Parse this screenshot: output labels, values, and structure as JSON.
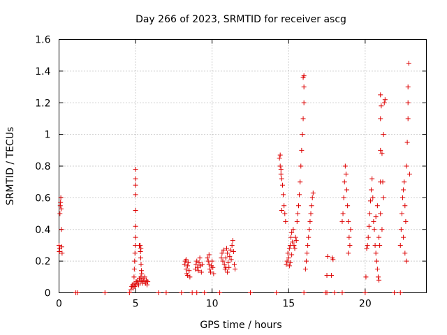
{
  "chart_data": {
    "type": "scatter",
    "title": "Day 266 of 2023, SRMTID for receiver ascg",
    "xlabel": "GPS time / hours",
    "ylabel": "SRMTID / TECUs",
    "xlim": [
      0,
      24
    ],
    "ylim": [
      0,
      1.6
    ],
    "xticks": [
      {
        "value": 0,
        "label": "0"
      },
      {
        "value": 5,
        "label": "5"
      },
      {
        "value": 10,
        "label": "10"
      },
      {
        "value": 15,
        "label": "15"
      },
      {
        "value": 20,
        "label": "20"
      }
    ],
    "yticks": [
      {
        "value": 0,
        "label": "0"
      },
      {
        "value": 0.2,
        "label": "0.2"
      },
      {
        "value": 0.4,
        "label": "0.4"
      },
      {
        "value": 0.6,
        "label": "0.6"
      },
      {
        "value": 0.8,
        "label": "0.8"
      },
      {
        "value": 1.0,
        "label": "1"
      },
      {
        "value": 1.2,
        "label": "1.2"
      },
      {
        "value": 1.4,
        "label": "1.4"
      },
      {
        "value": 1.6,
        "label": "1.6"
      }
    ],
    "grid": true,
    "marker": "+",
    "color": "#dd0000",
    "series": [
      {
        "name": "SRMTID",
        "points": [
          [
            0.0,
            0.3
          ],
          [
            0.02,
            0.26
          ],
          [
            0.04,
            0.28
          ],
          [
            0.06,
            0.5
          ],
          [
            0.08,
            0.55
          ],
          [
            0.1,
            0.57
          ],
          [
            0.12,
            0.6
          ],
          [
            0.14,
            0.53
          ],
          [
            0.16,
            0.4
          ],
          [
            0.18,
            0.29
          ],
          [
            0.2,
            0.25
          ],
          [
            1.1,
            0.0
          ],
          [
            1.2,
            0.0
          ],
          [
            3.0,
            0.0
          ],
          [
            4.6,
            0.0
          ],
          [
            4.7,
            0.02
          ],
          [
            4.75,
            0.04
          ],
          [
            4.8,
            0.05
          ],
          [
            4.85,
            0.03
          ],
          [
            4.9,
            0.06
          ],
          [
            4.95,
            0.04
          ],
          [
            5.0,
            0.05
          ],
          [
            5.05,
            0.07
          ],
          [
            5.1,
            0.06
          ],
          [
            5.15,
            0.08
          ],
          [
            5.2,
            0.05
          ],
          [
            5.25,
            0.09
          ],
          [
            5.3,
            0.07
          ],
          [
            5.35,
            0.1
          ],
          [
            5.4,
            0.08
          ],
          [
            5.45,
            0.06
          ],
          [
            5.5,
            0.09
          ],
          [
            5.55,
            0.07
          ],
          [
            5.6,
            0.1
          ],
          [
            5.65,
            0.06
          ],
          [
            5.7,
            0.08
          ],
          [
            5.75,
            0.05
          ],
          [
            5.8,
            0.07
          ],
          [
            4.9,
            0.1
          ],
          [
            4.92,
            0.15
          ],
          [
            4.94,
            0.2
          ],
          [
            4.96,
            0.25
          ],
          [
            4.98,
            0.3
          ],
          [
            5.0,
            0.35
          ],
          [
            5.0,
            0.42
          ],
          [
            5.0,
            0.52
          ],
          [
            5.0,
            0.62
          ],
          [
            5.0,
            0.68
          ],
          [
            5.0,
            0.72
          ],
          [
            5.0,
            0.78
          ],
          [
            5.3,
            0.3
          ],
          [
            5.32,
            0.26
          ],
          [
            5.34,
            0.22
          ],
          [
            5.36,
            0.18
          ],
          [
            5.38,
            0.14
          ],
          [
            5.4,
            0.12
          ],
          [
            5.35,
            0.28
          ],
          [
            5.25,
            0.3
          ],
          [
            6.5,
            0.0
          ],
          [
            7.0,
            0.0
          ],
          [
            8.0,
            0.0
          ],
          [
            8.2,
            0.18
          ],
          [
            8.25,
            0.2
          ],
          [
            8.3,
            0.15
          ],
          [
            8.35,
            0.12
          ],
          [
            8.4,
            0.17
          ],
          [
            8.45,
            0.19
          ],
          [
            8.5,
            0.14
          ],
          [
            8.55,
            0.1
          ],
          [
            8.3,
            0.21
          ],
          [
            8.4,
            0.11
          ],
          [
            8.7,
            0.0
          ],
          [
            9.0,
            0.0
          ],
          [
            8.9,
            0.15
          ],
          [
            8.95,
            0.18
          ],
          [
            9.0,
            0.2
          ],
          [
            9.05,
            0.16
          ],
          [
            9.1,
            0.14
          ],
          [
            9.15,
            0.19
          ],
          [
            9.2,
            0.22
          ],
          [
            9.25,
            0.17
          ],
          [
            9.3,
            0.13
          ],
          [
            9.35,
            0.18
          ],
          [
            9.5,
            0.0
          ],
          [
            9.7,
            0.22
          ],
          [
            9.75,
            0.2
          ],
          [
            9.8,
            0.18
          ],
          [
            9.85,
            0.15
          ],
          [
            9.9,
            0.13
          ],
          [
            9.95,
            0.17
          ],
          [
            10.0,
            0.2
          ],
          [
            10.05,
            0.16
          ],
          [
            10.1,
            0.12
          ],
          [
            9.8,
            0.24
          ],
          [
            10.5,
            0.0
          ],
          [
            10.6,
            0.22
          ],
          [
            10.65,
            0.25
          ],
          [
            10.7,
            0.2
          ],
          [
            10.75,
            0.27
          ],
          [
            10.8,
            0.18
          ],
          [
            10.85,
            0.15
          ],
          [
            10.9,
            0.22
          ],
          [
            10.95,
            0.28
          ],
          [
            11.0,
            0.25
          ],
          [
            11.05,
            0.19
          ],
          [
            11.1,
            0.16
          ],
          [
            11.15,
            0.23
          ],
          [
            11.2,
            0.27
          ],
          [
            11.25,
            0.21
          ],
          [
            11.3,
            0.3
          ],
          [
            11.35,
            0.33
          ],
          [
            11.4,
            0.26
          ],
          [
            11.45,
            0.18
          ],
          [
            11.5,
            0.15
          ],
          [
            11.0,
            0.13
          ],
          [
            10.9,
            0.16
          ],
          [
            12.5,
            0.0
          ],
          [
            14.2,
            0.0
          ],
          [
            14.4,
            0.85
          ],
          [
            14.45,
            0.8
          ],
          [
            14.5,
            0.75
          ],
          [
            14.55,
            0.72
          ],
          [
            14.6,
            0.68
          ],
          [
            14.65,
            0.62
          ],
          [
            14.7,
            0.55
          ],
          [
            14.75,
            0.5
          ],
          [
            14.8,
            0.45
          ],
          [
            14.45,
            0.87
          ],
          [
            14.5,
            0.78
          ],
          [
            14.55,
            0.52
          ],
          [
            14.85,
            0.18
          ],
          [
            14.9,
            0.2
          ],
          [
            14.95,
            0.25
          ],
          [
            15.0,
            0.22
          ],
          [
            15.05,
            0.28
          ],
          [
            15.1,
            0.3
          ],
          [
            15.15,
            0.35
          ],
          [
            15.2,
            0.38
          ],
          [
            15.25,
            0.32
          ],
          [
            15.3,
            0.4
          ],
          [
            15.35,
            0.3
          ],
          [
            15.4,
            0.28
          ],
          [
            15.45,
            0.35
          ],
          [
            15.5,
            0.33
          ],
          [
            15.55,
            0.45
          ],
          [
            15.6,
            0.5
          ],
          [
            15.65,
            0.55
          ],
          [
            15.7,
            0.62
          ],
          [
            15.75,
            0.7
          ],
          [
            15.8,
            0.8
          ],
          [
            15.85,
            0.9
          ],
          [
            15.9,
            1.0
          ],
          [
            15.95,
            1.1
          ],
          [
            16.0,
            1.2
          ],
          [
            16.0,
            1.3
          ],
          [
            16.0,
            1.37
          ],
          [
            15.95,
            1.36
          ],
          [
            15.05,
            0.17
          ],
          [
            15.1,
            0.19
          ],
          [
            15.2,
            0.24
          ],
          [
            16.1,
            0.15
          ],
          [
            16.15,
            0.2
          ],
          [
            16.2,
            0.25
          ],
          [
            16.25,
            0.3
          ],
          [
            16.3,
            0.35
          ],
          [
            16.35,
            0.4
          ],
          [
            16.4,
            0.45
          ],
          [
            16.45,
            0.5
          ],
          [
            16.5,
            0.55
          ],
          [
            16.55,
            0.6
          ],
          [
            16.6,
            0.63
          ],
          [
            16.0,
            0.0
          ],
          [
            17.4,
            0.0
          ],
          [
            17.5,
            0.0
          ],
          [
            17.5,
            0.11
          ],
          [
            17.55,
            0.23
          ],
          [
            17.8,
            0.11
          ],
          [
            17.85,
            0.22
          ],
          [
            17.9,
            0.21
          ],
          [
            18.0,
            0.0
          ],
          [
            18.5,
            0.0
          ],
          [
            18.5,
            0.45
          ],
          [
            18.55,
            0.5
          ],
          [
            18.6,
            0.6
          ],
          [
            18.65,
            0.7
          ],
          [
            18.7,
            0.8
          ],
          [
            18.75,
            0.75
          ],
          [
            18.8,
            0.65
          ],
          [
            18.85,
            0.55
          ],
          [
            18.9,
            0.45
          ],
          [
            18.95,
            0.35
          ],
          [
            19.0,
            0.3
          ],
          [
            19.05,
            0.4
          ],
          [
            18.9,
            0.25
          ],
          [
            20.0,
            0.0
          ],
          [
            20.05,
            0.1
          ],
          [
            20.1,
            0.28
          ],
          [
            20.15,
            0.3
          ],
          [
            20.2,
            0.35
          ],
          [
            20.25,
            0.42
          ],
          [
            20.3,
            0.5
          ],
          [
            20.35,
            0.58
          ],
          [
            20.4,
            0.65
          ],
          [
            20.45,
            0.72
          ],
          [
            20.5,
            0.6
          ],
          [
            20.55,
            0.45
          ],
          [
            20.6,
            0.4
          ],
          [
            20.65,
            0.3
          ],
          [
            20.7,
            0.25
          ],
          [
            20.75,
            0.2
          ],
          [
            20.8,
            0.15
          ],
          [
            20.85,
            0.1
          ],
          [
            20.9,
            0.08
          ],
          [
            20.95,
            0.3
          ],
          [
            21.0,
            0.5
          ],
          [
            21.0,
            0.7
          ],
          [
            21.0,
            0.9
          ],
          [
            21.0,
            1.1
          ],
          [
            21.0,
            1.25
          ],
          [
            21.05,
            1.18
          ],
          [
            21.1,
            0.88
          ],
          [
            21.15,
            0.7
          ],
          [
            21.2,
            1.0
          ],
          [
            21.25,
            1.2
          ],
          [
            21.3,
            1.22
          ],
          [
            21.2,
            0.6
          ],
          [
            21.1,
            0.4
          ],
          [
            20.9,
            0.35
          ],
          [
            20.7,
            0.48
          ],
          [
            20.8,
            0.55
          ],
          [
            21.9,
            0.0
          ],
          [
            22.3,
            0.0
          ],
          [
            22.3,
            0.3
          ],
          [
            22.35,
            0.4
          ],
          [
            22.4,
            0.5
          ],
          [
            22.45,
            0.6
          ],
          [
            22.5,
            0.65
          ],
          [
            22.55,
            0.7
          ],
          [
            22.6,
            0.55
          ],
          [
            22.65,
            0.45
          ],
          [
            22.7,
            0.8
          ],
          [
            22.75,
            0.95
          ],
          [
            22.8,
            1.1
          ],
          [
            22.8,
            1.2
          ],
          [
            22.8,
            1.3
          ],
          [
            22.85,
            1.45
          ],
          [
            22.7,
            0.2
          ],
          [
            22.6,
            0.25
          ],
          [
            22.5,
            0.35
          ],
          [
            22.9,
            0.75
          ]
        ]
      }
    ]
  }
}
